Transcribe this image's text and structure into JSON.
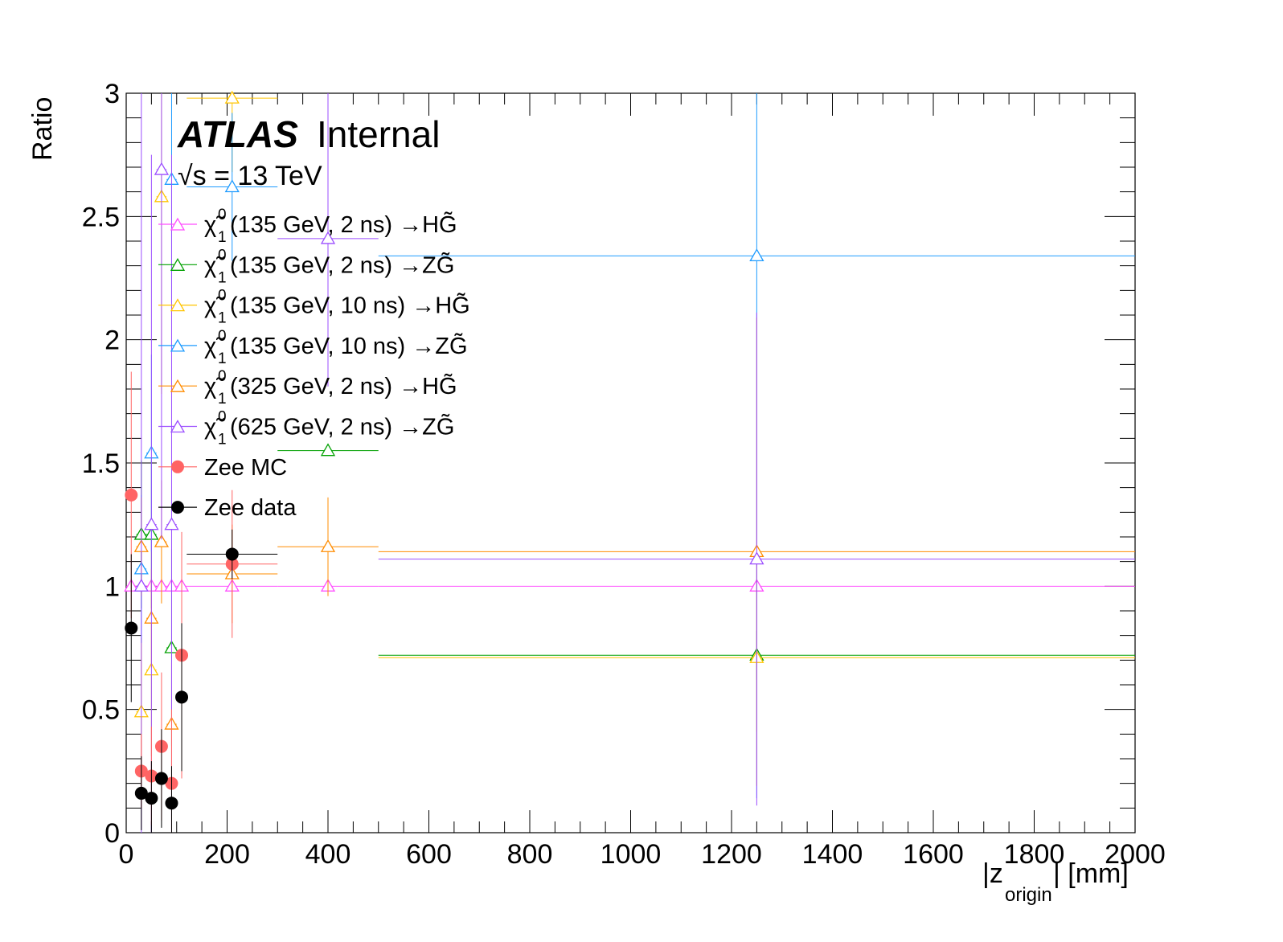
{
  "chart_data": {
    "type": "scatter",
    "title": "",
    "xlabel": "|z_origin| [mm]",
    "xlabel_main": "|z",
    "xlabel_sub": "origin",
    "xlabel_tail": "| [mm]",
    "ylabel": "Ratio",
    "xlim": [
      0,
      2000
    ],
    "ylim": [
      0,
      3
    ],
    "x_ticks": [
      "0",
      "200",
      "400",
      "600",
      "800",
      "1000",
      "1200",
      "1400",
      "1600",
      "1800",
      "2000"
    ],
    "y_ticks": [
      "0",
      "0.5",
      "1",
      "1.5",
      "2",
      "2.5",
      "3"
    ],
    "atlas_label": "ATLAS",
    "atlas_status": "Internal",
    "energy_label": "√s = 13 TeV",
    "series": [
      {
        "name": "χ̃₁⁰(135 GeV, 2 ns) →HG̃",
        "name_main": "(135 GeV, 2 ns) →HG̃",
        "color": "#ff4dff",
        "marker": "open-triangle",
        "points": [
          {
            "x": 10,
            "y": 1.0,
            "xerr": 10,
            "yerr": 0
          },
          {
            "x": 30,
            "y": 1.0,
            "xerr": 10,
            "yerr": 0
          },
          {
            "x": 50,
            "y": 1.0,
            "xerr": 10,
            "yerr": 0
          },
          {
            "x": 70,
            "y": 1.0,
            "xerr": 10,
            "yerr": 0
          },
          {
            "x": 90,
            "y": 1.0,
            "xerr": 10,
            "yerr": 0
          },
          {
            "x": 110,
            "y": 1.0,
            "xerr": 10,
            "yerr": 0
          },
          {
            "x": 210,
            "y": 1.0,
            "xerr": 90,
            "yerr": 0
          },
          {
            "x": 400,
            "y": 1.0,
            "xerr": 100,
            "yerr": 0
          },
          {
            "x": 1250,
            "y": 1.0,
            "xerr": 750,
            "yerr": 0
          }
        ]
      },
      {
        "name": "χ̃₁⁰(135 GeV, 2 ns) →ZG̃",
        "name_main": "(135 GeV, 2 ns) →ZG̃",
        "color": "#00a000",
        "marker": "open-triangle",
        "points": [
          {
            "x": 30,
            "y": 1.21,
            "xerr": 10,
            "yerr": 0.3
          },
          {
            "x": 50,
            "y": 1.21,
            "xerr": 10,
            "yerr": 0.3
          },
          {
            "x": 90,
            "y": 0.75,
            "xerr": 10,
            "yerr": 0.4
          },
          {
            "x": 400,
            "y": 1.55,
            "xerr": 100,
            "yerr": 0
          },
          {
            "x": 1250,
            "y": 0.72,
            "xerr": 750,
            "yerr": 0.1
          }
        ]
      },
      {
        "name": "χ̃₁⁰(135 GeV, 10 ns) →HG̃",
        "name_main": "(135 GeV, 10 ns) →HG̃",
        "color": "#ffc400",
        "marker": "open-triangle",
        "points": [
          {
            "x": 30,
            "y": 0.49,
            "xerr": 10,
            "yerr": 0.3
          },
          {
            "x": 50,
            "y": 0.66,
            "xerr": 10,
            "yerr": 0.35
          },
          {
            "x": 70,
            "y": 2.58,
            "xerr": 10,
            "yerr": 0.8
          },
          {
            "x": 210,
            "y": 2.98,
            "xerr": 90,
            "yerr": 0.3
          },
          {
            "x": 1250,
            "y": 0.71,
            "xerr": 750,
            "yerr": 0.3
          }
        ]
      },
      {
        "name": "χ̃₁⁰(135 GeV, 10 ns) →ZG̃",
        "name_main": "(135 GeV, 10 ns) →ZG̃",
        "color": "#1e9bff",
        "marker": "open-triangle",
        "points": [
          {
            "x": 30,
            "y": 1.07,
            "xerr": 10,
            "yerr": 0.3
          },
          {
            "x": 50,
            "y": 1.54,
            "xerr": 10,
            "yerr": 0.4
          },
          {
            "x": 90,
            "y": 2.65,
            "xerr": 10,
            "yerr": 0.5
          },
          {
            "x": 210,
            "y": 2.62,
            "xerr": 90,
            "yerr": 0.3
          },
          {
            "x": 1250,
            "y": 2.34,
            "xerr": 750,
            "yerr": 2.2
          }
        ]
      },
      {
        "name": "χ̃₁⁰(325 GeV, 2 ns) →HG̃",
        "name_main": "(325 GeV, 2 ns) →HG̃",
        "color": "#ff8c00",
        "marker": "open-triangle",
        "points": [
          {
            "x": 30,
            "y": 1.16,
            "xerr": 10,
            "yerr": 0.2
          },
          {
            "x": 50,
            "y": 0.87,
            "xerr": 10,
            "yerr": 0.2
          },
          {
            "x": 70,
            "y": 1.18,
            "xerr": 10,
            "yerr": 0.25
          },
          {
            "x": 90,
            "y": 0.44,
            "xerr": 10,
            "yerr": 0.25
          },
          {
            "x": 210,
            "y": 1.05,
            "xerr": 90,
            "yerr": 0.2
          },
          {
            "x": 400,
            "y": 1.16,
            "xerr": 100,
            "yerr": 0.2
          },
          {
            "x": 1250,
            "y": 1.14,
            "xerr": 750,
            "yerr": 0.95
          }
        ]
      },
      {
        "name": "χ̃₁⁰(625 GeV, 2 ns) →ZG̃",
        "name_main": "(625 GeV, 2 ns) →ZG̃",
        "color": "#9b4dff",
        "marker": "open-triangle",
        "points": [
          {
            "x": 30,
            "y": 1.0,
            "xerr": 10,
            "yerr": 2.0
          },
          {
            "x": 50,
            "y": 1.25,
            "xerr": 10,
            "yerr": 1.5
          },
          {
            "x": 70,
            "y": 2.69,
            "xerr": 10,
            "yerr": 1.5
          },
          {
            "x": 90,
            "y": 1.25,
            "xerr": 10,
            "yerr": 1.5
          },
          {
            "x": 400,
            "y": 2.41,
            "xerr": 100,
            "yerr": 0.6
          },
          {
            "x": 1250,
            "y": 1.11,
            "xerr": 750,
            "yerr": 1.0
          }
        ]
      },
      {
        "name": "Zee MC",
        "color": "#ff6464",
        "marker": "filled-circle",
        "points": [
          {
            "x": 10,
            "y": 1.37,
            "xerr": 10,
            "yerr": 0.5
          },
          {
            "x": 30,
            "y": 0.25,
            "xerr": 10,
            "yerr": 0.15
          },
          {
            "x": 50,
            "y": 0.23,
            "xerr": 10,
            "yerr": 0.2
          },
          {
            "x": 70,
            "y": 0.35,
            "xerr": 10,
            "yerr": 0.3
          },
          {
            "x": 90,
            "y": 0.2,
            "xerr": 10,
            "yerr": 0.3
          },
          {
            "x": 110,
            "y": 0.72,
            "xerr": 10,
            "yerr": 0.5
          },
          {
            "x": 210,
            "y": 1.09,
            "xerr": 90,
            "yerr": 0.3
          }
        ]
      },
      {
        "name": "Zee data",
        "color": "#000000",
        "marker": "filled-circle",
        "points": [
          {
            "x": 10,
            "y": 0.83,
            "xerr": 10,
            "yerr": 0.3
          },
          {
            "x": 30,
            "y": 0.16,
            "xerr": 10,
            "yerr": 0.15
          },
          {
            "x": 50,
            "y": 0.14,
            "xerr": 10,
            "yerr": 0.15
          },
          {
            "x": 70,
            "y": 0.22,
            "xerr": 10,
            "yerr": 0.2
          },
          {
            "x": 90,
            "y": 0.12,
            "xerr": 10,
            "yerr": 0.15
          },
          {
            "x": 110,
            "y": 0.55,
            "xerr": 10,
            "yerr": 0.3
          },
          {
            "x": 210,
            "y": 1.13,
            "xerr": 90,
            "yerr": 0.1
          }
        ]
      }
    ]
  }
}
